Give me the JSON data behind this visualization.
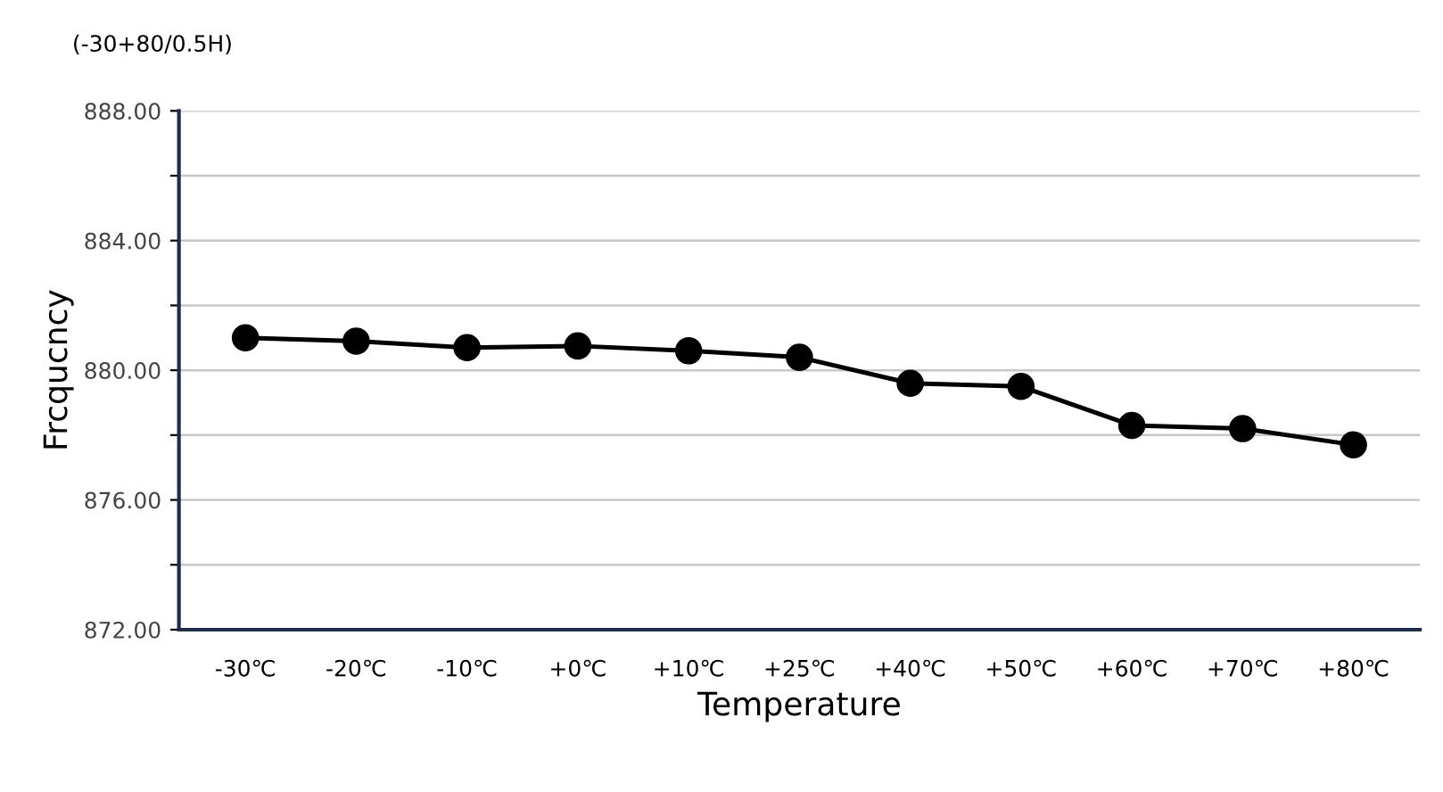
{
  "chart_data": {
    "type": "line",
    "title": "(-30+80/0.5H)",
    "xlabel": "Temperature",
    "ylabel": "Frcqucncy",
    "categories": [
      "-30℃",
      "-20℃",
      "-10℃",
      "+0℃",
      "+10℃",
      "+25℃",
      "+40℃",
      "+50℃",
      "+60℃",
      "+70℃",
      "+80℃"
    ],
    "series": [
      {
        "color": "#000000",
        "values": [
          881.0,
          880.9,
          880.7,
          880.75,
          880.6,
          880.4,
          879.6,
          879.5,
          878.3,
          878.2,
          877.7
        ]
      }
    ],
    "ylim": [
      872,
      888
    ],
    "yticks": [
      {
        "value": 872,
        "label": "872.00"
      },
      {
        "value": 874,
        "label": null
      },
      {
        "value": 876,
        "label": "876.00"
      },
      {
        "value": 878,
        "label": null
      },
      {
        "value": 880,
        "label": "880.00"
      },
      {
        "value": 882,
        "label": null
      },
      {
        "value": 884,
        "label": "884.00"
      },
      {
        "value": 886,
        "label": null
      },
      {
        "value": 888,
        "label": "888.00"
      }
    ],
    "grid": "y",
    "marker": "circle",
    "line_style": "solid"
  }
}
